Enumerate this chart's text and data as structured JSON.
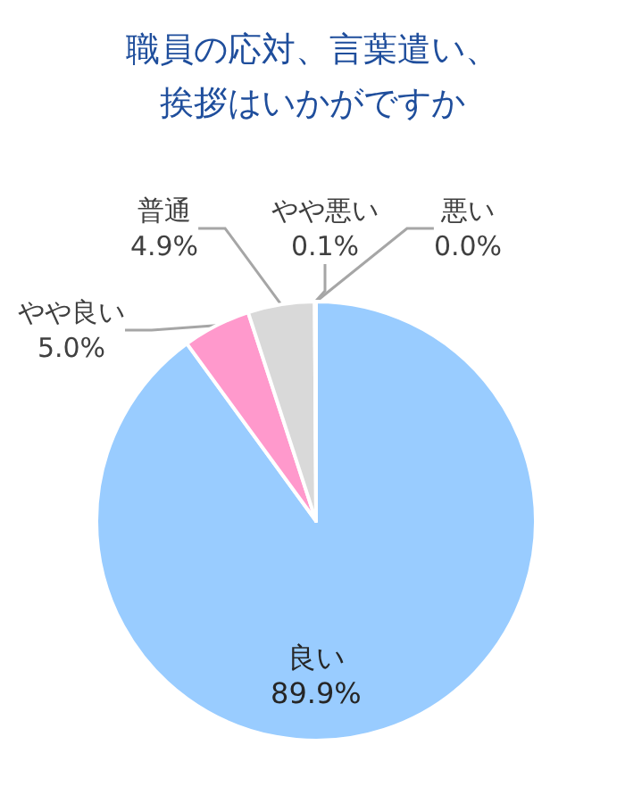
{
  "chart_data": {
    "type": "pie",
    "title": "職員の応対、言葉遣い、挨拶はいかがですか",
    "categories": [
      "良い",
      "やや良い",
      "普通",
      "やや悪い",
      "悪い"
    ],
    "values": [
      89.9,
      5.0,
      4.9,
      0.1,
      0.0
    ],
    "value_labels": [
      "89.9%",
      "5.0%",
      "4.9%",
      "0.1%",
      "0.0%"
    ],
    "colors": [
      "#99ccff",
      "#ff99cc",
      "#d9d9d9",
      "#bfbfbf",
      "#8c8c8c"
    ],
    "legend": false
  }
}
